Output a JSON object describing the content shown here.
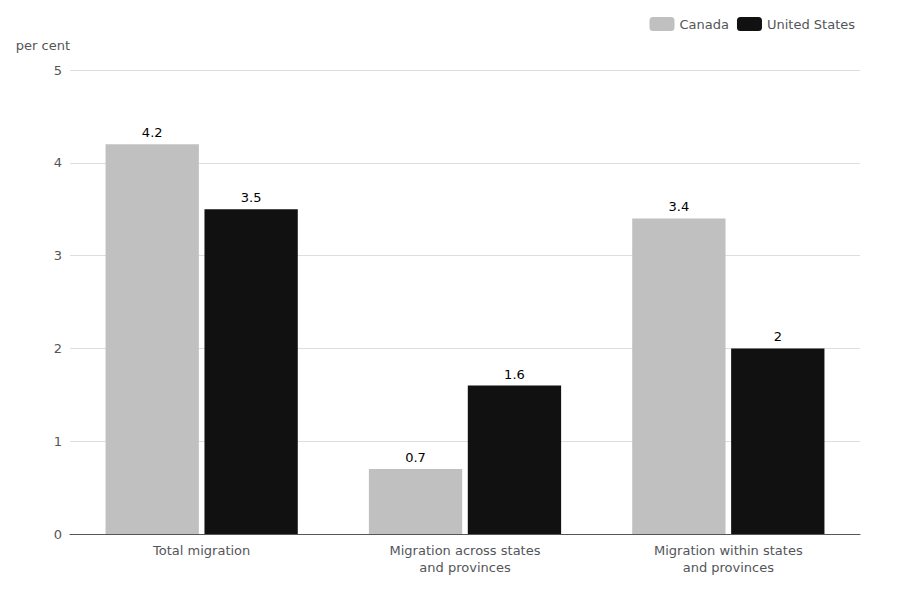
{
  "chart_data": {
    "type": "bar",
    "categories": [
      "Total migration",
      "Migration across states\nand provinces",
      "Migration within states\nand provinces"
    ],
    "series": [
      {
        "name": "Canada",
        "color": "#c0c0c0",
        "values": [
          4.2,
          0.7,
          3.4
        ]
      },
      {
        "name": "United States",
        "color": "#111111",
        "values": [
          3.5,
          1.6,
          2.0
        ]
      }
    ],
    "ylabel": "per cent",
    "ylim": [
      0,
      5
    ],
    "yticks": [
      0,
      1,
      2,
      3,
      4,
      5
    ],
    "grid": true,
    "data_labels": true,
    "legend": "upper right"
  }
}
